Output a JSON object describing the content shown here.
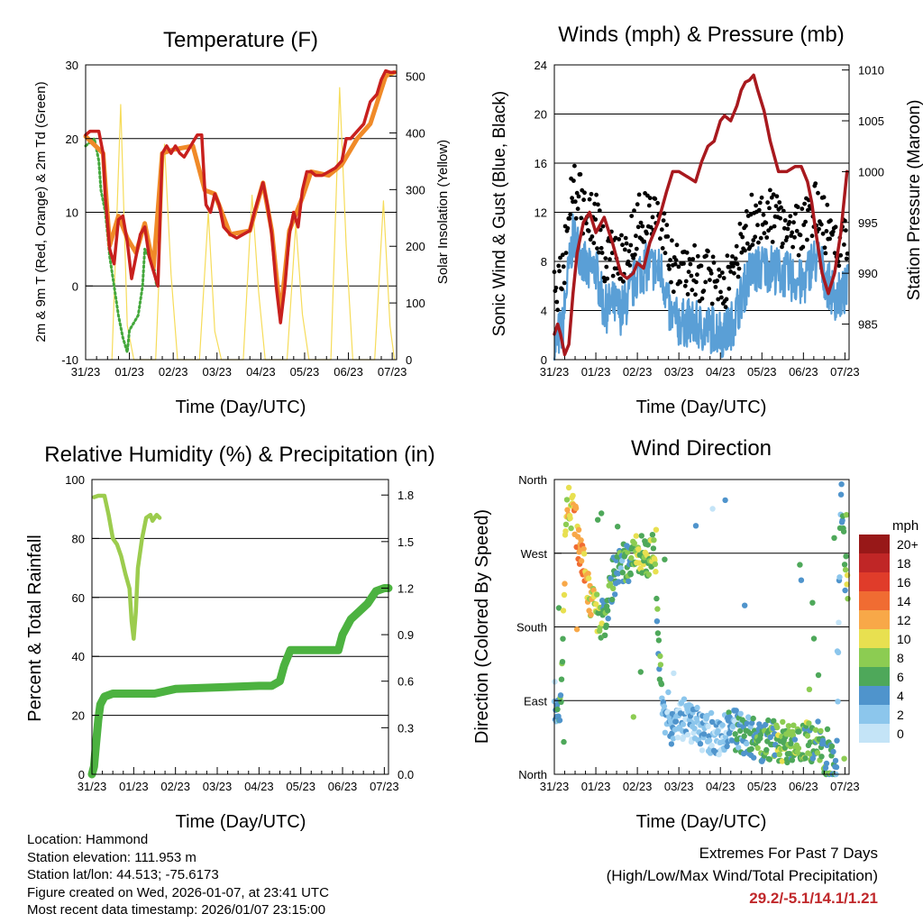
{
  "panels": {
    "temperature": {
      "title": "Temperature (F)",
      "ylabel_left": "2m & 9m T (Red, Orange) & 2m Td (Green)",
      "ylabel_right": "Solar Insolation (Yellow)",
      "xlabel": "Time (Day/UTC)",
      "y_ticks": [
        "-10",
        "0",
        "10",
        "20",
        "30"
      ],
      "y2_ticks": [
        "0",
        "100",
        "200",
        "300",
        "400",
        "500"
      ]
    },
    "winds": {
      "title": "Winds (mph) & Pressure (mb)",
      "ylabel_left": "Sonic Wind & Gust (Blue, Black)",
      "ylabel_right": "Station Pressure (Maroon)",
      "xlabel": "Time (Day/UTC)",
      "y_ticks": [
        "0",
        "4",
        "8",
        "12",
        "16",
        "20",
        "24"
      ],
      "y2_ticks": [
        "985",
        "990",
        "995",
        "1000",
        "1005",
        "1010"
      ]
    },
    "humidity": {
      "title": "Relative Humidity (%) & Precipitation (in)",
      "ylabel_left": "Percent & Total Rainfall",
      "xlabel": "Time (Day/UTC)",
      "y_ticks": [
        "0",
        "20",
        "40",
        "60",
        "80",
        "100"
      ],
      "y2_ticks": [
        "0.0",
        "0.3",
        "0.6",
        "0.9",
        "1.2",
        "1.5",
        "1.8"
      ]
    },
    "direction": {
      "title": "Wind Direction",
      "ylabel_left": "Direction (Colored By Speed)",
      "xlabel": "Time (Day/UTC)",
      "y_ticks": [
        "North",
        "East",
        "South",
        "West",
        "North"
      ],
      "legend_title": "mph",
      "legend_labels": [
        "0",
        "2",
        "4",
        "6",
        "8",
        "10",
        "12",
        "14",
        "16",
        "18",
        "20+"
      ],
      "legend_colors": [
        "#c4e4f7",
        "#8cc6ec",
        "#4f94cc",
        "#4ea85a",
        "#8ccc52",
        "#e8e050",
        "#f8a848",
        "#f06c32",
        "#e03c2a",
        "#c02626",
        "#981818"
      ]
    }
  },
  "x_ticks": [
    "31/23",
    "01/23",
    "02/23",
    "03/23",
    "04/23",
    "05/23",
    "06/23",
    "07/23"
  ],
  "info": {
    "location": "Location: Hammond",
    "elevation": "Station elevation: 111.953 m",
    "latlon": "Station lat/lon: 44.513; -75.6173",
    "created": "Figure created on Wed, 2026-01-07, at 23:41 UTC",
    "recent": "Most recent data timestamp: 2026/01/07 23:15:00"
  },
  "extremes": {
    "title": "Extremes For Past 7 Days",
    "subtitle": "(High/Low/Max Wind/Total Precipitation)",
    "values": "29.2/-5.1/14.1/1.21"
  },
  "colors": {
    "temp2m": "#c8201e",
    "temp9m": "#f08a28",
    "dewpoint": "#44a83c",
    "solar": "#f6dc5a",
    "wind": "#5a9fd6",
    "gust": "#000000",
    "pressure": "#a8191e",
    "rh": "#9ccc4e",
    "precip": "#4cb240"
  },
  "chart_data": [
    {
      "type": "line",
      "title": "Temperature (F)",
      "xlabel": "Time (Day/UTC)",
      "ylabel": "2m & 9m T (Red, Orange) & 2m Td (Green)",
      "y2label": "Solar Insolation (Yellow)",
      "xlim": [
        0,
        7.1
      ],
      "ylim": [
        -10,
        30
      ],
      "y2lim": [
        0,
        520
      ],
      "series": [
        {
          "name": "2m T",
          "axis": "left",
          "x": [
            0,
            0.1,
            0.3,
            0.4,
            0.45,
            0.55,
            0.65,
            0.75,
            0.85,
            0.95,
            1.05,
            1.15,
            1.25,
            1.35,
            1.45,
            1.55,
            1.65,
            1.75,
            1.85,
            1.95,
            2.05,
            2.15,
            2.25,
            2.35,
            2.45,
            2.55,
            2.65,
            2.72,
            2.75,
            2.85,
            2.95,
            3.05,
            3.15,
            3.3,
            3.45,
            3.6,
            3.75,
            3.85,
            3.95,
            4.05,
            4.15,
            4.25,
            4.35,
            4.45,
            4.55,
            4.65,
            4.75,
            4.85,
            4.95,
            5.05,
            5.15,
            5.25,
            5.4,
            5.55,
            5.7,
            5.85,
            5.95,
            6.05,
            6.2,
            6.35,
            6.5,
            6.65,
            6.75,
            6.85,
            6.95,
            7.05
          ],
          "y": [
            20.5,
            21,
            21,
            18,
            12,
            5,
            3,
            9,
            9.5,
            6,
            1,
            4,
            7,
            8,
            4,
            2,
            0,
            18,
            19,
            18,
            19,
            18,
            17.5,
            18.5,
            19.5,
            20.5,
            20.5,
            13,
            11,
            10,
            12.5,
            11,
            8,
            7,
            6.5,
            7,
            7.5,
            10,
            12,
            14,
            11,
            7,
            0,
            -5,
            0,
            7,
            10,
            8,
            13,
            15.5,
            15.5,
            15,
            15,
            15.5,
            16,
            17,
            20,
            20,
            21,
            22,
            25,
            26,
            28,
            29.2,
            29,
            29
          ]
        },
        {
          "name": "9m T",
          "axis": "left",
          "x": [
            0,
            0.4,
            0.55,
            0.75,
            0.95,
            1.15,
            1.35,
            1.55,
            1.75,
            2.0,
            2.45,
            2.72,
            2.95,
            3.3,
            3.75,
            4.05,
            4.25,
            4.45,
            4.65,
            4.95,
            5.15,
            5.55,
            5.85,
            6.2,
            6.5,
            6.85,
            7.05
          ],
          "y": [
            20.3,
            18,
            5.5,
            9.5,
            6.5,
            4.5,
            8.5,
            2.5,
            18,
            18.5,
            19,
            13,
            12.5,
            7,
            7.5,
            14,
            7.5,
            -4,
            7.5,
            12,
            15.5,
            15,
            16.5,
            20,
            22,
            28.5,
            29
          ]
        },
        {
          "name": "2m Td",
          "axis": "left",
          "x": [
            0,
            0.1,
            0.2,
            0.3,
            0.35,
            0.45,
            0.55,
            0.65,
            0.75,
            0.85,
            0.95,
            1.0,
            1.1,
            1.2,
            1.3,
            1.35,
            1.45,
            1.55,
            1.62
          ],
          "y": [
            19,
            19.5,
            20,
            17,
            13,
            10,
            4,
            0,
            -4,
            -7,
            -9,
            -6,
            -5,
            -4,
            0,
            5,
            4,
            3,
            0
          ]
        },
        {
          "name": "Solar Insolation",
          "axis": "right",
          "x": [
            0.6,
            0.8,
            0.95,
            1.1,
            1.6,
            1.8,
            1.95,
            2.1,
            2.6,
            2.8,
            2.95,
            3.1,
            3.6,
            3.8,
            3.95,
            4.1,
            4.6,
            4.8,
            4.95,
            5.1,
            5.6,
            5.8,
            5.95,
            6.1,
            6.6,
            6.8,
            6.95,
            7.05
          ],
          "y": [
            0,
            450,
            60,
            0,
            0,
            380,
            150,
            0,
            0,
            260,
            50,
            0,
            0,
            290,
            120,
            0,
            0,
            240,
            80,
            0,
            0,
            480,
            200,
            0,
            0,
            280,
            60,
            0
          ]
        }
      ]
    },
    {
      "type": "line",
      "title": "Winds (mph) & Pressure (mb)",
      "xlabel": "Time (Day/UTC)",
      "ylabel": "Sonic Wind & Gust (Blue, Black)",
      "y2label": "Station Pressure (Maroon)",
      "xlim": [
        0,
        7.1
      ],
      "ylim": [
        0,
        24
      ],
      "y2lim": [
        981.5,
        1010.5
      ],
      "series": [
        {
          "name": "Station Pressure",
          "axis": "right",
          "x": [
            0,
            0.08,
            0.15,
            0.25,
            0.35,
            0.45,
            0.55,
            0.7,
            0.85,
            1.0,
            1.2,
            1.4,
            1.6,
            1.75,
            1.9,
            2.0,
            2.15,
            2.3,
            2.5,
            2.7,
            2.85,
            3.0,
            3.2,
            3.4,
            3.55,
            3.7,
            3.85,
            4.0,
            4.1,
            4.25,
            4.4,
            4.5,
            4.6,
            4.7,
            4.8,
            4.9,
            5.05,
            5.2,
            5.4,
            5.6,
            5.8,
            5.95,
            6.1,
            6.2,
            6.3,
            6.45,
            6.6,
            6.75,
            6.9,
            7.0,
            7.05
          ],
          "y": [
            984,
            985,
            984,
            982,
            983,
            988,
            992,
            995,
            996,
            994,
            995.5,
            993,
            990,
            989.5,
            990,
            991,
            990.5,
            993,
            995,
            998,
            1000,
            1000,
            999.5,
            999,
            1001,
            1002.5,
            1003,
            1005,
            1005.5,
            1005,
            1006.5,
            1008,
            1008.8,
            1009,
            1009.5,
            1008,
            1006,
            1003,
            1000,
            1000,
            1000.5,
            1000.5,
            999,
            997,
            994,
            990,
            988,
            990,
            994,
            998,
            1000
          ]
        }
      ]
    },
    {
      "type": "line",
      "title": "Relative Humidity (%) & Precipitation (in)",
      "xlabel": "Time (Day/UTC)",
      "ylabel": "Percent & Total Rainfall",
      "xlim": [
        0,
        7.1
      ],
      "ylim": [
        0,
        100
      ],
      "y2lim": [
        0,
        1.9
      ],
      "series": [
        {
          "name": "Relative Humidity",
          "axis": "left",
          "x": [
            0.05,
            0.15,
            0.3,
            0.4,
            0.5,
            0.6,
            0.7,
            0.8,
            0.9,
            0.95,
            1.0,
            1.05,
            1.1,
            1.2,
            1.3,
            1.4,
            1.45,
            1.55,
            1.62
          ],
          "y": [
            94,
            94.5,
            94.5,
            88,
            80,
            78,
            74,
            68,
            63,
            52,
            46,
            55,
            70,
            80,
            87,
            88,
            86,
            88,
            87
          ]
        },
        {
          "name": "Total Precipitation",
          "axis": "right",
          "x": [
            0,
            0.05,
            0.1,
            0.15,
            0.2,
            0.3,
            0.5,
            1.0,
            1.5,
            2.0,
            3.0,
            4.0,
            4.3,
            4.5,
            4.6,
            4.75,
            5.0,
            5.5,
            5.9,
            6.0,
            6.2,
            6.4,
            6.6,
            6.8,
            7.0,
            7.1
          ],
          "y": [
            0.0,
            0.05,
            0.2,
            0.35,
            0.45,
            0.5,
            0.52,
            0.52,
            0.52,
            0.55,
            0.56,
            0.57,
            0.57,
            0.6,
            0.7,
            0.8,
            0.8,
            0.8,
            0.8,
            0.9,
            1.0,
            1.05,
            1.1,
            1.18,
            1.2,
            1.2
          ]
        }
      ]
    },
    {
      "type": "scatter",
      "title": "Wind Direction",
      "xlabel": "Time (Day/UTC)",
      "ylabel": "Direction (Colored By Speed)",
      "xlim": [
        0,
        7.1
      ],
      "ylim": [
        0,
        360
      ],
      "colorbar": {
        "label": "mph",
        "levels": [
          0,
          2,
          4,
          6,
          8,
          10,
          12,
          14,
          16,
          18,
          20
        ]
      }
    }
  ]
}
